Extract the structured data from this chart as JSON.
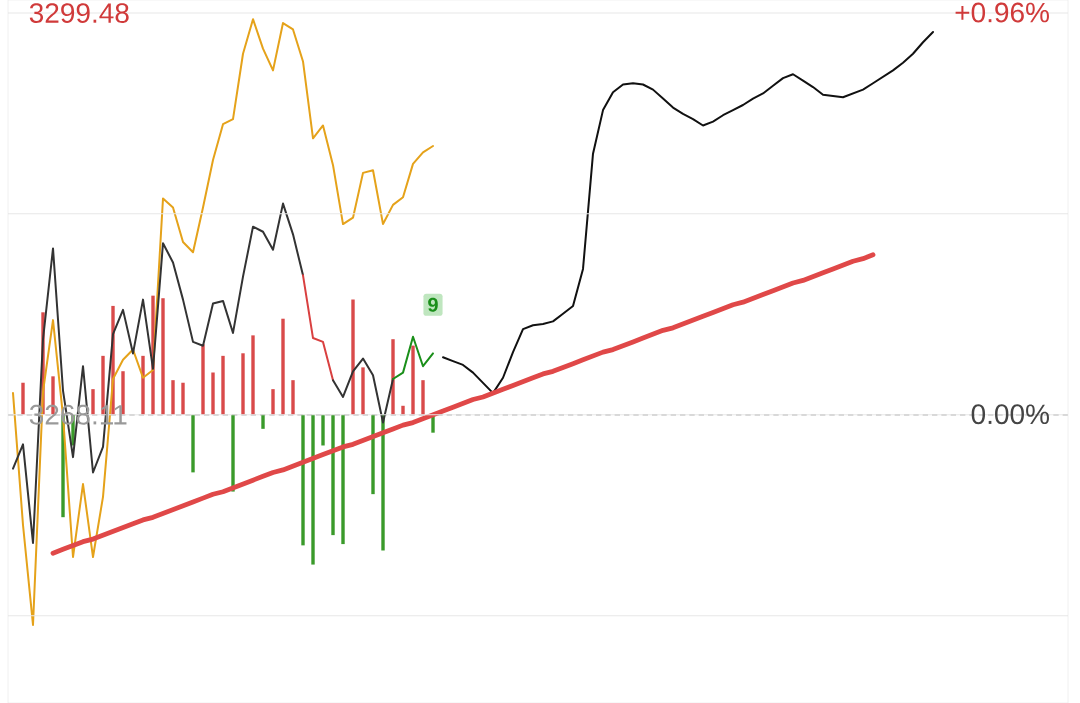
{
  "chart_data": {
    "type": "line",
    "categories": [
      null,
      null,
      null,
      null,
      null,
      null,
      null,
      null,
      null,
      null,
      null,
      null,
      null,
      null,
      null,
      null,
      null,
      null,
      null,
      null,
      null,
      null,
      null,
      null,
      null,
      null,
      null,
      null,
      null,
      null,
      null,
      null,
      null,
      null,
      null,
      null,
      null,
      null,
      null,
      null,
      null,
      null,
      null,
      null,
      null,
      null,
      null,
      null,
      null,
      null,
      null,
      null,
      null,
      null,
      null,
      null,
      null,
      null,
      null,
      null,
      null,
      null,
      null,
      null,
      null,
      null,
      null,
      null,
      null,
      null,
      null,
      null,
      null,
      null,
      null,
      null,
      null,
      null,
      null,
      null,
      null,
      null,
      null,
      null,
      null,
      null,
      null,
      null,
      null,
      null,
      null,
      null,
      null,
      null,
      null,
      null,
      null,
      null,
      null,
      null,
      null,
      null,
      null,
      null,
      null,
      null
    ],
    "ylim": [
      3245.6,
      3300.5
    ],
    "yticks": [
      {
        "value": 3299.48,
        "label": "3299.48"
      },
      {
        "value": 3283.8,
        "label": null
      },
      {
        "value": 3268.11,
        "label": "3268.11"
      },
      {
        "value": 3252.42,
        "label": null
      }
    ],
    "y2lim": [
      -0.69,
      0.99
    ],
    "y2ticks": [
      {
        "value": 0.96,
        "label": "+0.96%"
      },
      {
        "value": 0,
        "label": "0.00%"
      }
    ],
    "tick_labels": "y",
    "grid": "y",
    "ref_lines": [
      {
        "axis": "y",
        "value": 3268.11,
        "color": "#aaaaaa",
        "line_style": "dashed"
      }
    ],
    "annotations": [
      "9"
    ],
    "series": [
      {
        "type": "bar",
        "base": [
          null,
          3268.11,
          null,
          3268.11,
          3268.11,
          3268.11,
          3268.11,
          null,
          3268.11,
          3268.11,
          3268.11,
          3268.11,
          null,
          3268.11,
          3268.11,
          3268.11,
          3268.11,
          3268.11,
          3268.11,
          3268.11,
          3268.11,
          3268.11,
          3268.11,
          3268.11,
          3268.11,
          3268.11,
          3268.11,
          3268.11,
          3268.11,
          3268.11,
          3268.11,
          3268.11,
          3268.11,
          3268.11,
          3268.11,
          3268.11,
          3268.11,
          3268.11,
          3268.11,
          3268.11,
          3268.11,
          3268.11,
          3268.11,
          null,
          null,
          null,
          null,
          null,
          null,
          null,
          null,
          null,
          null,
          null,
          null,
          null,
          null,
          null,
          null,
          null,
          null,
          null,
          null,
          null,
          null,
          null,
          null,
          null,
          null,
          null,
          null,
          null,
          null,
          null,
          null,
          null,
          null,
          null,
          null,
          null,
          null,
          null,
          null,
          null,
          null,
          null,
          null,
          null,
          null,
          null,
          null,
          null,
          null,
          null,
          null,
          null,
          null,
          null,
          null,
          null,
          null,
          null,
          null,
          null,
          null,
          null
        ],
        "values": [
          null,
          2.5,
          null,
          8.0,
          3.0,
          -8.0,
          -2.4,
          null,
          2.0,
          4.6,
          8.5,
          3.4,
          null,
          4.6,
          9.3,
          9.1,
          2.7,
          2.5,
          -4.5,
          5.5,
          3.3,
          4.6,
          -6.0,
          4.8,
          6.2,
          -1.1,
          2.0,
          7.5,
          2.7,
          -10.2,
          -11.7,
          -2.4,
          -9.4,
          -10.1,
          9.0,
          3.7,
          -6.2,
          -10.6,
          5.9,
          0.7,
          5.4,
          2.7,
          -1.4,
          null,
          null,
          null,
          null,
          null,
          null,
          null,
          null,
          null,
          null,
          null,
          null,
          null,
          null,
          null,
          null,
          null,
          null,
          null,
          null,
          null,
          null,
          null,
          null,
          null,
          null,
          null,
          null,
          null,
          null,
          null,
          null,
          null,
          null,
          null,
          null,
          null,
          null,
          null,
          null,
          null,
          null,
          null,
          null,
          null,
          null,
          null,
          null,
          null,
          null,
          null,
          null,
          null,
          null,
          null,
          null,
          null,
          null,
          null,
          null,
          null,
          null,
          null
        ],
        "colors": [
          null,
          "#d94a4a",
          null,
          "#d94a4a",
          "#d94a4a",
          "#3a9a2a",
          "#3a9a2a",
          null,
          "#d94a4a",
          "#d94a4a",
          "#d94a4a",
          "#d94a4a",
          null,
          "#d94a4a",
          "#d94a4a",
          "#d94a4a",
          "#d94a4a",
          "#d94a4a",
          "#3a9a2a",
          "#d94a4a",
          "#d94a4a",
          "#d94a4a",
          "#3a9a2a",
          "#d94a4a",
          "#d94a4a",
          "#3a9a2a",
          "#d94a4a",
          "#d94a4a",
          "#d94a4a",
          "#3a9a2a",
          "#3a9a2a",
          "#3a9a2a",
          "#3a9a2a",
          "#3a9a2a",
          "#d94a4a",
          "#d94a4a",
          "#3a9a2a",
          "#3a9a2a",
          "#d94a4a",
          "#d94a4a",
          "#d94a4a",
          "#d94a4a",
          "#3a9a2a",
          null,
          null,
          null,
          null,
          null,
          null,
          null,
          null,
          null,
          null,
          null,
          null,
          null,
          null,
          null,
          null,
          null,
          null,
          null,
          null,
          null,
          null,
          null,
          null,
          null,
          null,
          null,
          null,
          null,
          null,
          null,
          null,
          null,
          null,
          null,
          null,
          null,
          null,
          null,
          null,
          null,
          null,
          null,
          null,
          null,
          null,
          null,
          null,
          null,
          null,
          null,
          null,
          null,
          null,
          null,
          null,
          null,
          null,
          null,
          null,
          null,
          null,
          null
        ]
      },
      {
        "color": "#e5a21a",
        "values": [
          3269.8,
          3259.5,
          3251.7,
          3269.9,
          3275.5,
          3268.0,
          3257.0,
          3262.7,
          3257.0,
          3261.7,
          3270.9,
          3272.4,
          3273.2,
          3271.0,
          3271.6,
          3285.0,
          3284.3,
          3281.6,
          3280.8,
          3284.3,
          3288.0,
          3290.8,
          3291.2,
          3296.3,
          3299.0,
          3296.7,
          3295.0,
          3298.7,
          3298.2,
          3295.7,
          3289.7,
          3290.7,
          3287.6,
          3283.0,
          3283.5,
          3287.0,
          3287.2,
          3283.0,
          3284.5,
          3285.1,
          3287.7,
          3288.6,
          3289.1,
          null,
          null,
          null,
          null,
          null,
          null,
          null,
          null,
          null,
          null,
          null,
          null,
          null,
          null,
          null,
          null,
          null,
          null,
          null,
          null,
          null,
          null,
          null,
          null,
          null,
          null,
          null,
          null,
          null,
          null,
          null,
          null,
          null,
          null,
          null,
          null,
          null,
          null,
          null,
          null,
          null,
          null,
          null,
          null,
          null,
          null,
          null,
          null,
          null,
          null,
          null,
          null,
          null,
          null,
          null,
          null,
          null,
          null,
          null,
          null,
          null,
          null,
          null
        ]
      },
      {
        "color": "#333333",
        "values": [
          3263.9,
          3265.8,
          3258.1,
          3274.0,
          3281.1,
          3270.0,
          3264.8,
          3271.9,
          3263.6,
          3265.6,
          3274.4,
          3276.3,
          3272.9,
          3277.1,
          3271.7,
          3281.5,
          3280.0,
          3277.1,
          3273.8,
          3273.5,
          3276.8,
          3277.0,
          3274.5,
          3278.9,
          3282.8,
          3282.4,
          3281.0,
          3284.6,
          3282.2,
          3279.0,
          null,
          null,
          null,
          null,
          null,
          null,
          null,
          null,
          null,
          null,
          null,
          null,
          null,
          null,
          null,
          null,
          null,
          null,
          null,
          null,
          null,
          null,
          null,
          null,
          null,
          null,
          null,
          null,
          null,
          null,
          null,
          null,
          null,
          null,
          null,
          null,
          null,
          null,
          null,
          null,
          null,
          null,
          null,
          null,
          null,
          null,
          null,
          null,
          null,
          null,
          null,
          null,
          null,
          null,
          null,
          null,
          null,
          null,
          null,
          null,
          null,
          null,
          null,
          null,
          null,
          null,
          null,
          null,
          null,
          null,
          null,
          null,
          null,
          null,
          null,
          null
        ]
      },
      {
        "color": "#d94040",
        "values": [
          null,
          null,
          null,
          null,
          null,
          null,
          null,
          null,
          null,
          null,
          null,
          null,
          null,
          null,
          null,
          null,
          null,
          null,
          null,
          null,
          null,
          null,
          null,
          null,
          null,
          null,
          null,
          null,
          null,
          3279.0,
          3274.1,
          3273.8,
          3270.8,
          null,
          null,
          null,
          null,
          null,
          null,
          null,
          null,
          null,
          null,
          null,
          null,
          null,
          null,
          null,
          null,
          null,
          null,
          null,
          null,
          null,
          null,
          null,
          null,
          null,
          null,
          null,
          null,
          null,
          null,
          null,
          null,
          null,
          null,
          null,
          null,
          null,
          null,
          null,
          null,
          null,
          null,
          null,
          null,
          null,
          null,
          null,
          null,
          null,
          null,
          null,
          null,
          null,
          null,
          null,
          null,
          null,
          null,
          null,
          null,
          null,
          null,
          null,
          null,
          null,
          null,
          null,
          null,
          null,
          null,
          null,
          null,
          null
        ]
      },
      {
        "color": "#333333",
        "values": [
          null,
          null,
          null,
          null,
          null,
          null,
          null,
          null,
          null,
          null,
          null,
          null,
          null,
          null,
          null,
          null,
          null,
          null,
          null,
          null,
          null,
          null,
          null,
          null,
          null,
          null,
          null,
          null,
          null,
          null,
          null,
          null,
          3270.8,
          3269.5,
          3271.5,
          3272.5,
          3271.2,
          3267.5,
          3270.9,
          null,
          null,
          null,
          null,
          null,
          null,
          null,
          null,
          null,
          null,
          null,
          null,
          null,
          null,
          null,
          null,
          null,
          null,
          null,
          null,
          null,
          null,
          null,
          null,
          null,
          null,
          null,
          null,
          null,
          null,
          null,
          null,
          null,
          null,
          null,
          null,
          null,
          null,
          null,
          null,
          null,
          null,
          null,
          null,
          null,
          null,
          null,
          null,
          null,
          null,
          null,
          null,
          null,
          null,
          null,
          null,
          null,
          null,
          null,
          null,
          null,
          null,
          null,
          null,
          null,
          null,
          null
        ]
      },
      {
        "color": "#1a8f1a",
        "values": [
          null,
          null,
          null,
          null,
          null,
          null,
          null,
          null,
          null,
          null,
          null,
          null,
          null,
          null,
          null,
          null,
          null,
          null,
          null,
          null,
          null,
          null,
          null,
          null,
          null,
          null,
          null,
          null,
          null,
          null,
          null,
          null,
          null,
          null,
          null,
          null,
          null,
          null,
          3270.9,
          3271.4,
          3274.2,
          3271.9,
          3272.9,
          null,
          null,
          null,
          null,
          null,
          null,
          null,
          null,
          null,
          null,
          null,
          null,
          null,
          null,
          null,
          null,
          null,
          null,
          null,
          null,
          null,
          null,
          null,
          null,
          null,
          null,
          null,
          null,
          null,
          null,
          null,
          null,
          null,
          null,
          null,
          null,
          null,
          null,
          null,
          null,
          null,
          null,
          null,
          null,
          null,
          null,
          null,
          null,
          null,
          null,
          null,
          null,
          null,
          null,
          null,
          null,
          null,
          null,
          null,
          null,
          null,
          null,
          null
        ]
      },
      {
        "color": "#111111",
        "values": [
          null,
          null,
          null,
          null,
          null,
          null,
          null,
          null,
          null,
          null,
          null,
          null,
          null,
          null,
          null,
          null,
          null,
          null,
          null,
          null,
          null,
          null,
          null,
          null,
          null,
          null,
          null,
          null,
          null,
          null,
          null,
          null,
          null,
          null,
          null,
          null,
          null,
          null,
          null,
          null,
          null,
          null,
          null,
          3272.6,
          3272.3,
          3272.0,
          3271.4,
          3270.6,
          3269.8,
          3271.0,
          3273.0,
          3274.8,
          3275.1,
          3275.2,
          3275.4,
          3276.0,
          3276.6,
          3279.5,
          3288.5,
          3291.9,
          3293.3,
          3293.9,
          3294.0,
          3293.9,
          3293.5,
          3292.8,
          3292.1,
          3291.6,
          3291.2,
          3290.7,
          3291.0,
          3291.5,
          3291.9,
          3292.3,
          3292.8,
          3293.2,
          3293.8,
          3294.4,
          3294.7,
          3294.2,
          3293.7,
          3293.1,
          3293.0,
          3292.9,
          3293.2,
          3293.5,
          3294.0,
          3294.5,
          3295.0,
          3295.6,
          3296.3,
          3297.2,
          3298.0,
          null,
          null,
          null,
          null,
          null,
          null,
          null,
          null,
          null,
          null,
          null,
          null,
          null
        ]
      },
      {
        "color": "#e04848",
        "values": [
          null,
          null,
          null,
          null,
          3257.3,
          3257.6,
          3257.9,
          3258.2,
          3258.4,
          3258.7,
          3259.0,
          3259.3,
          3259.6,
          3259.9,
          3260.1,
          3260.4,
          3260.7,
          3261.0,
          3261.3,
          3261.6,
          3261.9,
          3262.1,
          3262.4,
          3262.7,
          3263.0,
          3263.3,
          3263.6,
          3263.8,
          3264.1,
          3264.4,
          3264.7,
          3265.0,
          3265.3,
          3265.6,
          3265.8,
          3266.1,
          3266.4,
          3266.7,
          3267.0,
          3267.3,
          3267.5,
          3267.8,
          3268.1,
          3268.4,
          3268.7,
          3269.0,
          3269.3,
          3269.5,
          3269.8,
          3270.1,
          3270.4,
          3270.7,
          3271.0,
          3271.3,
          3271.5,
          3271.8,
          3272.1,
          3272.4,
          3272.7,
          3273.0,
          3273.2,
          3273.5,
          3273.8,
          3274.1,
          3274.4,
          3274.7,
          3274.9,
          3275.2,
          3275.5,
          3275.8,
          3276.1,
          3276.4,
          3276.7,
          3276.9,
          3277.2,
          3277.5,
          3277.8,
          3278.1,
          3278.4,
          3278.6,
          3278.9,
          3279.2,
          3279.5,
          3279.8,
          3280.1,
          3280.3,
          3280.6,
          null,
          null,
          null,
          null,
          null,
          null,
          null,
          null,
          null,
          null,
          null,
          null,
          null,
          null,
          null,
          null,
          null,
          null,
          null
        ]
      }
    ]
  }
}
